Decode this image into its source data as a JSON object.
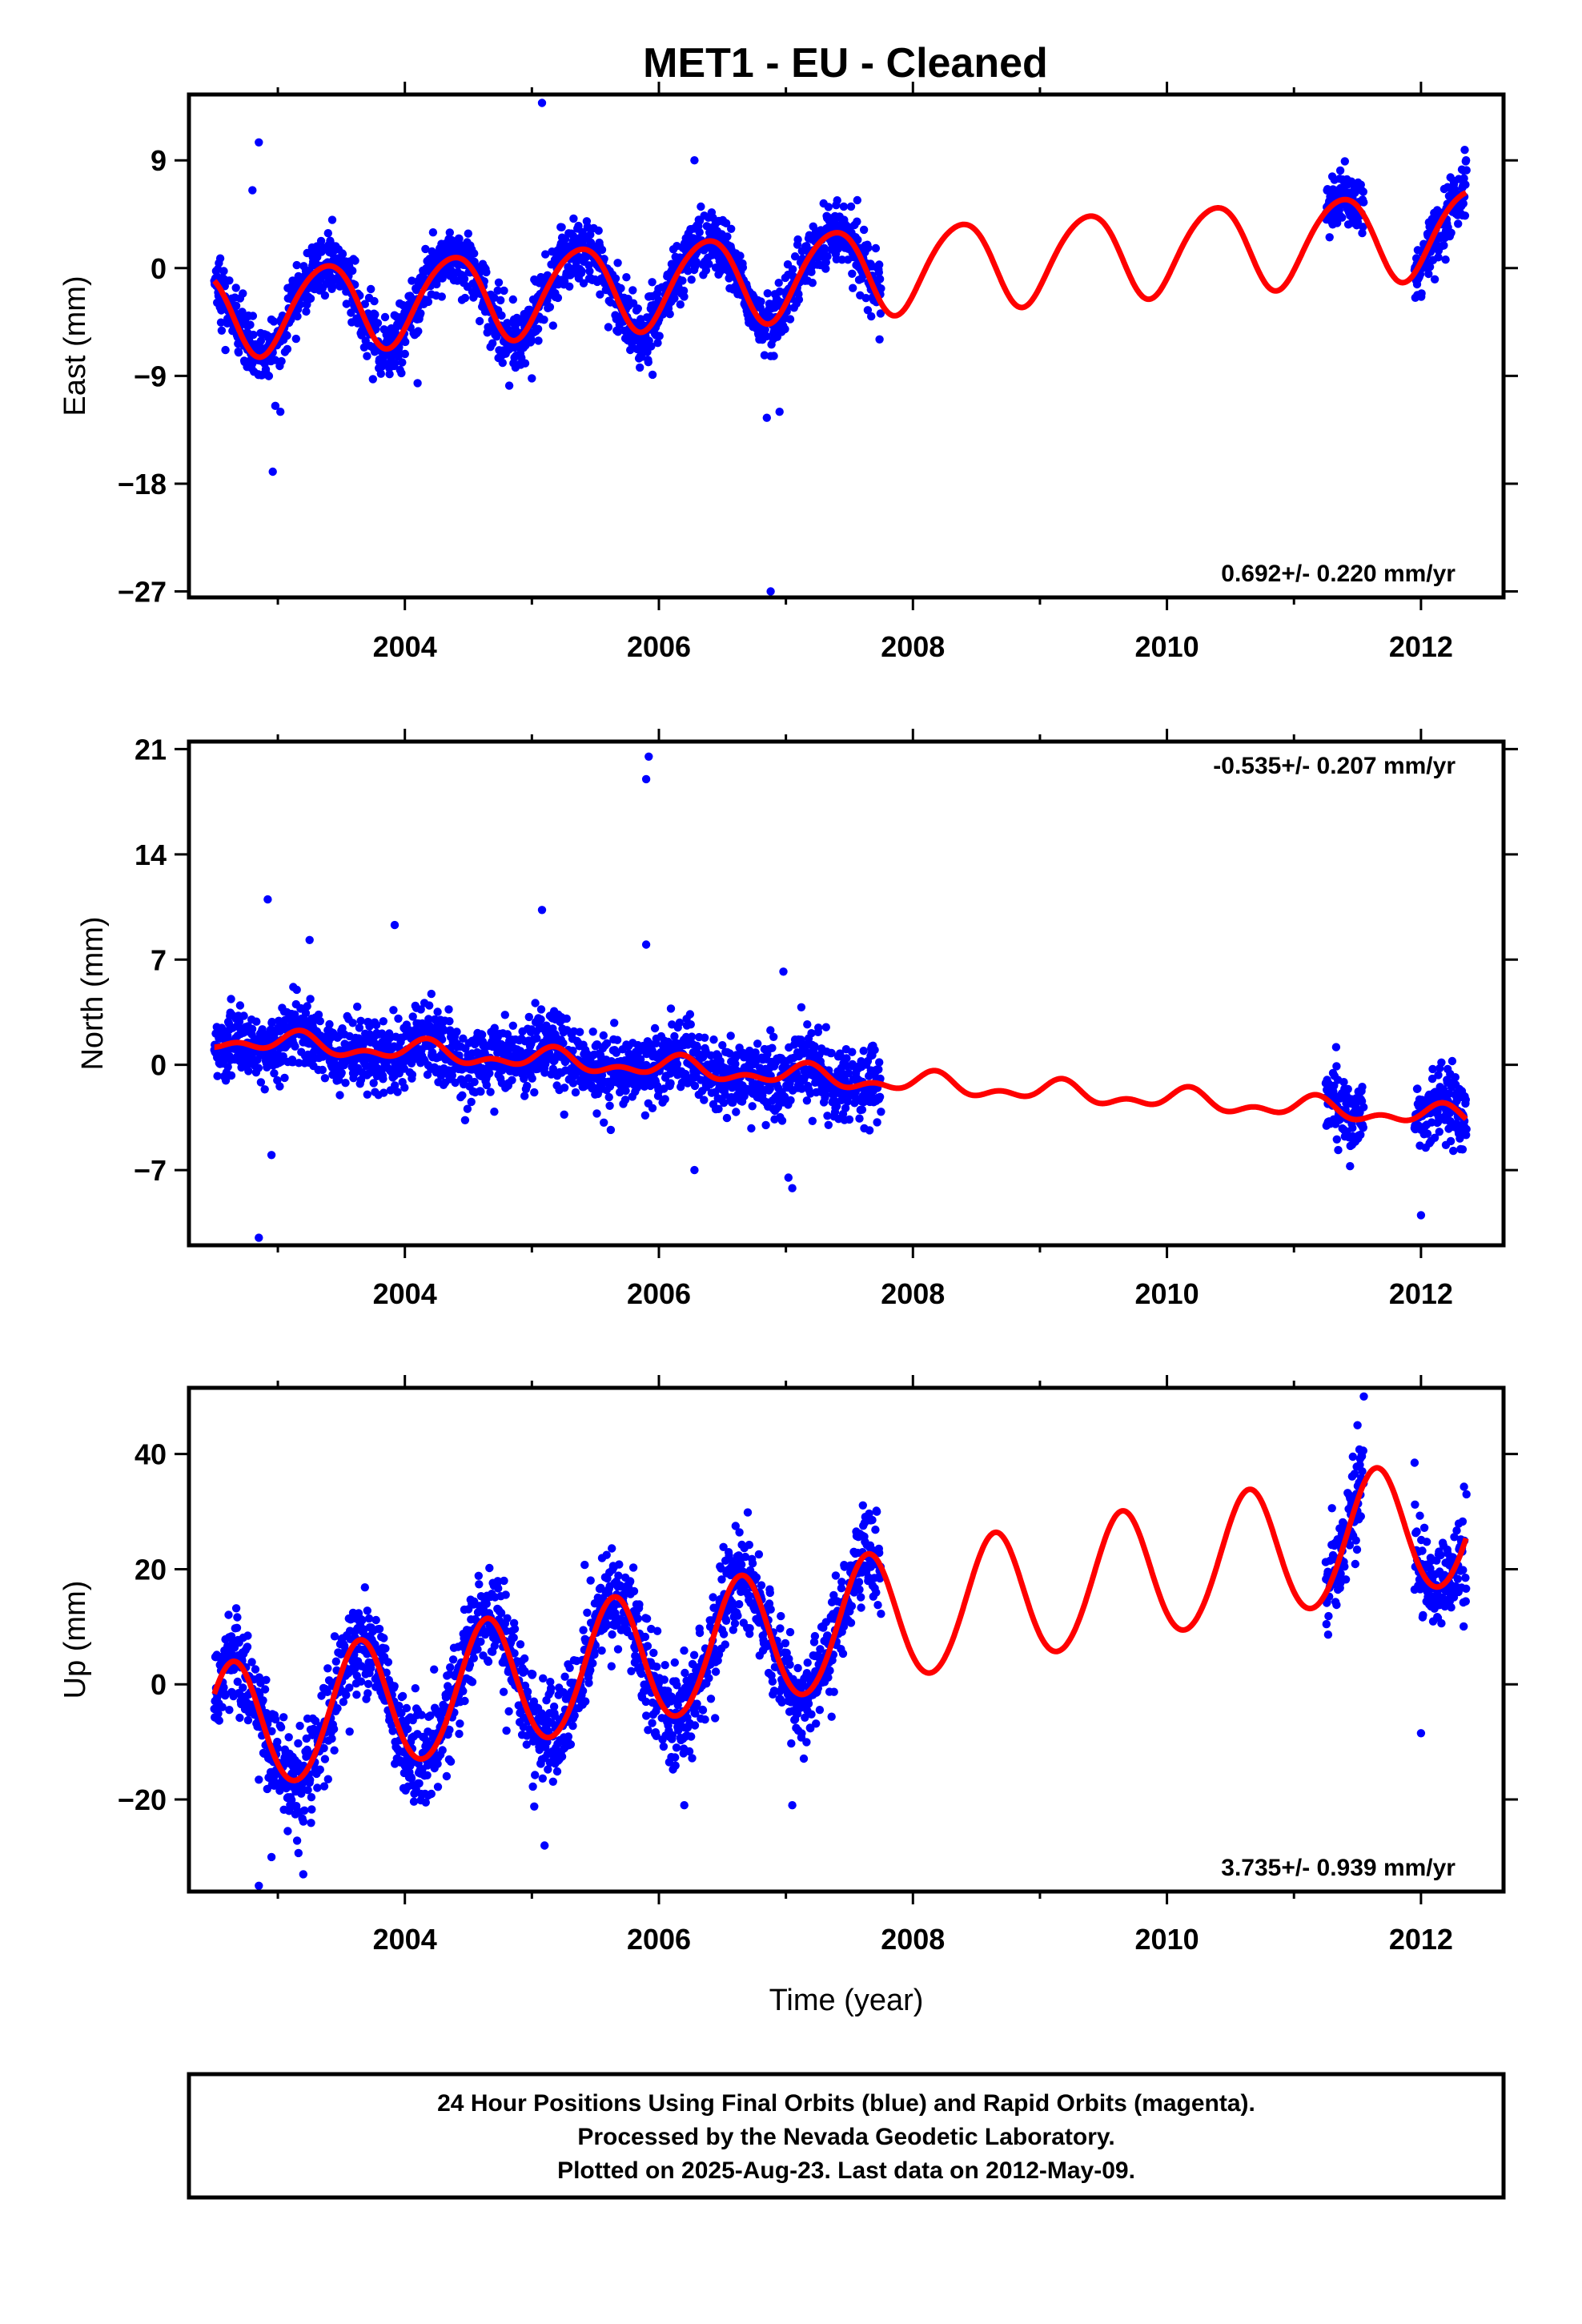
{
  "page_title": "MET1  - EU - Cleaned",
  "footer": {
    "lines": [
      "24 Hour Positions Using Final Orbits (blue) and Rapid Orbits (magenta).",
      "Processed by the Nevada Geodetic Laboratory.",
      "Plotted on 2025-Aug-23. Last data on 2012-May-09."
    ]
  },
  "colors": {
    "observations": "#0000ff",
    "model": "#ff0000",
    "axes": "#000000"
  },
  "chart_data": [
    {
      "type": "scatter",
      "id": "east",
      "ylabel": "East (mm)",
      "xlabel": "",
      "xlim": [
        2002.3,
        2012.65
      ],
      "ylim": [
        -27.5,
        14.5
      ],
      "xticks": [
        2004,
        2006,
        2008,
        2010,
        2012
      ],
      "yticks": [
        9,
        0,
        -9,
        -18,
        -27
      ],
      "ytick_labels": [
        "9",
        "0",
        "−9",
        "−18",
        "−27"
      ],
      "rate": "0.692+/- 0.220 mm/yr",
      "rate_position": "bottom-right",
      "data_segments": [
        [
          2002.5,
          2007.75
        ],
        [
          2011.25,
          2011.55
        ],
        [
          2011.95,
          2012.36
        ]
      ],
      "model": {
        "offset": -0.3,
        "rate": 0.692,
        "amp_sin": 2.6,
        "amp_cos": -2.5,
        "amp_semi_sin": 0.3,
        "amp_semi_cos": 0.2,
        "ref_epoch": 2007.5
      },
      "noise_sd": 1.3,
      "outliers": [
        [
          2002.85,
          10.5
        ],
        [
          2002.8,
          6.5
        ],
        [
          2002.98,
          -11.5
        ],
        [
          2002.96,
          -17
        ],
        [
          2003.02,
          -12
        ],
        [
          2005.08,
          13.8
        ],
        [
          2006.28,
          9
        ],
        [
          2006.88,
          -27
        ],
        [
          2006.85,
          -12.5
        ],
        [
          2006.95,
          -12
        ],
        [
          2005.0,
          -9.2
        ],
        [
          2005.85,
          -8.3
        ],
        [
          2005.95,
          -8.9
        ],
        [
          2004.1,
          -9.6
        ]
      ]
    },
    {
      "type": "scatter",
      "id": "north",
      "ylabel": "North (mm)",
      "xlabel": "",
      "xlim": [
        2002.3,
        2012.65
      ],
      "ylim": [
        -12,
        21.5
      ],
      "xticks": [
        2004,
        2006,
        2008,
        2010,
        2012
      ],
      "yticks": [
        21,
        14,
        7,
        0,
        -7
      ],
      "ytick_labels": [
        "21",
        "14",
        "7",
        "0",
        "−7"
      ],
      "rate": "-0.535+/- 0.207 mm/yr",
      "rate_position": "top-right",
      "data_segments": [
        [
          2002.5,
          2007.75
        ],
        [
          2011.25,
          2011.55
        ],
        [
          2011.95,
          2012.36
        ]
      ],
      "model": {
        "offset": -0.95,
        "rate": -0.535,
        "amp_sin": 0.45,
        "amp_cos": 0.3,
        "amp_semi_sin": 0.3,
        "amp_semi_cos": -0.25,
        "ref_epoch": 2007.5
      },
      "noise_sd": 1.2,
      "outliers": [
        [
          2005.92,
          20.5
        ],
        [
          2005.9,
          19
        ],
        [
          2002.92,
          11
        ],
        [
          2002.85,
          -11.5
        ],
        [
          2005.08,
          10.3
        ],
        [
          2003.92,
          9.3
        ],
        [
          2005.9,
          8
        ],
        [
          2003.25,
          8.3
        ],
        [
          2006.98,
          6.2
        ],
        [
          2007.05,
          -8.2
        ],
        [
          2007.02,
          -7.5
        ],
        [
          2006.28,
          -7
        ],
        [
          2012.0,
          -10
        ],
        [
          2002.95,
          -6
        ]
      ]
    },
    {
      "type": "scatter",
      "id": "up",
      "ylabel": "Up (mm)",
      "xlabel": "Time (year)",
      "xlim": [
        2002.3,
        2012.65
      ],
      "ylim": [
        -36,
        51.5
      ],
      "xticks": [
        2004,
        2006,
        2008,
        2010,
        2012
      ],
      "yticks": [
        40,
        20,
        0,
        -20
      ],
      "ytick_labels": [
        "40",
        "20",
        "0",
        "−20"
      ],
      "rate": "3.735+/- 0.939 mm/yr",
      "rate_position": "bottom-right",
      "data_segments": [
        [
          2002.5,
          2007.75
        ],
        [
          2011.25,
          2011.55
        ],
        [
          2011.95,
          2012.36
        ]
      ],
      "model": {
        "offset": 10.3,
        "rate": 3.735,
        "amp_sin": -8.8,
        "amp_cos": -7.0,
        "amp_semi_sin": 0.5,
        "amp_semi_cos": -0.3,
        "ref_epoch": 2007.5
      },
      "noise_sd": 4.2,
      "outliers": [
        [
          2011.55,
          50
        ],
        [
          2011.5,
          45
        ],
        [
          2002.85,
          -35
        ],
        [
          2003.2,
          -33
        ],
        [
          2002.95,
          -30
        ],
        [
          2005.1,
          -28
        ],
        [
          2012.0,
          -8.5
        ],
        [
          2011.95,
          38.5
        ],
        [
          2006.2,
          -21
        ],
        [
          2007.05,
          -21
        ]
      ]
    }
  ]
}
